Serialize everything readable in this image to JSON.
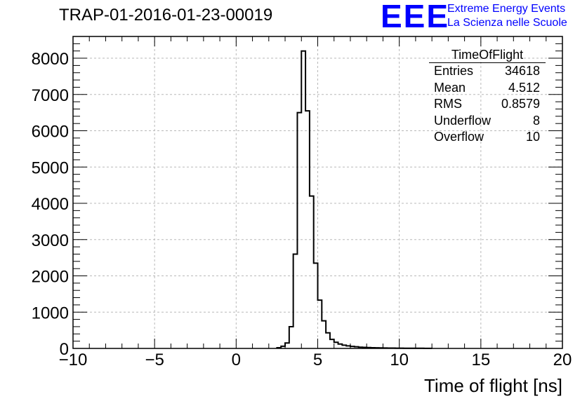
{
  "header": {
    "run_title": "TRAP-01-2016-01-23-00019",
    "logo_text": "EEE",
    "logo_line1": "Extreme Energy Events",
    "logo_line2": "La Scienza nelle Scuole",
    "logo_color": "#0000ff"
  },
  "stats_box": {
    "title": "TimeOfFlight",
    "rows": [
      {
        "label": "Entries",
        "value": "34618"
      },
      {
        "label": "Mean",
        "value": "4.512"
      },
      {
        "label": "RMS",
        "value": "0.8579"
      },
      {
        "label": "Underflow",
        "value": "8"
      },
      {
        "label": "Overflow",
        "value": "10"
      }
    ]
  },
  "chart_data": {
    "type": "bar",
    "style": "step-histogram",
    "xlabel": "Time of flight [ns]",
    "ylabel": "",
    "xlim": [
      -10,
      20
    ],
    "ylim": [
      0,
      8600
    ],
    "grid": true,
    "x_ticks": [
      -10,
      -5,
      0,
      5,
      10,
      15,
      20
    ],
    "x_tick_labels": [
      "−10",
      "−5",
      "0",
      "5",
      "10",
      "15",
      "20"
    ],
    "y_ticks": [
      0,
      1000,
      2000,
      3000,
      4000,
      5000,
      6000,
      7000,
      8000
    ],
    "y_tick_labels": [
      "0",
      "1000",
      "2000",
      "3000",
      "4000",
      "5000",
      "6000",
      "7000",
      "8000"
    ],
    "bin_edges": [
      2.5,
      2.75,
      3.0,
      3.25,
      3.5,
      3.75,
      4.0,
      4.25,
      4.5,
      4.75,
      5.0,
      5.25,
      5.5,
      5.75,
      6.0,
      6.25,
      6.5,
      6.75,
      7.0,
      7.25,
      7.5,
      7.75,
      8.0,
      8.25,
      8.5,
      8.75,
      9.0,
      9.25,
      9.5,
      9.75,
      10.0,
      10.25,
      10.5,
      10.75,
      11.0,
      11.25,
      11.5,
      11.75,
      12.0
    ],
    "values": [
      20,
      60,
      150,
      600,
      2600,
      6500,
      8200,
      6550,
      4200,
      2350,
      1330,
      760,
      430,
      250,
      170,
      120,
      90,
      70,
      55,
      45,
      35,
      30,
      25,
      20,
      18,
      15,
      12,
      10,
      9,
      8,
      7,
      6,
      5,
      5,
      4,
      4,
      3,
      3
    ],
    "line_color": "#000000"
  }
}
